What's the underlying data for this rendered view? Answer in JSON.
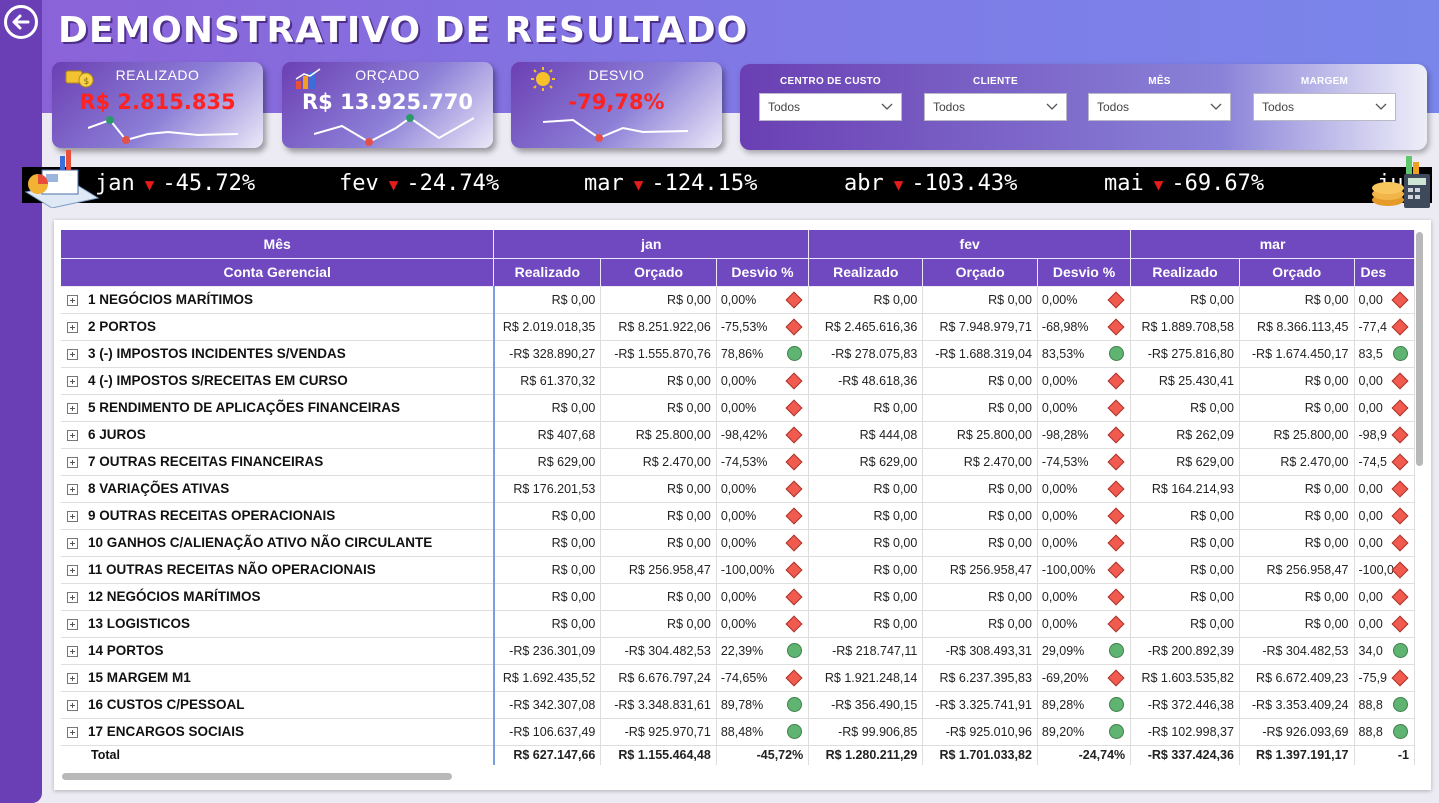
{
  "title": "DEMONSTRATIVO DE RESULTADO",
  "kpis": {
    "realizado": {
      "label": "REALIZADO",
      "value": "R$ 2.815.835",
      "color": "#ff2222"
    },
    "orcado": {
      "label": "ORÇADO",
      "value": "R$ 13.925.770",
      "color": "#ffffff"
    },
    "desvio": {
      "label": "DESVIO",
      "value": "-79,78%",
      "color": "#ff2222"
    }
  },
  "filters": [
    {
      "label": "CENTRO DE CUSTO",
      "value": "Todos"
    },
    {
      "label": "CLIENTE",
      "value": "Todos"
    },
    {
      "label": "MÊS",
      "value": "Todos"
    },
    {
      "label": "MARGEM",
      "value": "Todos"
    }
  ],
  "ticker": [
    {
      "month": "jan",
      "value": "-45.72%"
    },
    {
      "month": "fev",
      "value": "-24.74%"
    },
    {
      "month": "mar",
      "value": "-124.15%"
    },
    {
      "month": "abr",
      "value": "-103.43%"
    },
    {
      "month": "mai",
      "value": "-69.67%"
    },
    {
      "month": "ju",
      "value": ""
    }
  ],
  "matrix": {
    "row_header_1": "Mês",
    "row_header_2": "Conta Gerencial",
    "months": [
      "jan",
      "fev",
      "mar"
    ],
    "measures": [
      "Realizado",
      "Orçado",
      "Desvio %"
    ],
    "last_measure_partial": "Des",
    "rows": [
      {
        "name": "1 NEGÓCIOS MARÍTIMOS",
        "cells": [
          [
            "R$ 0,00",
            "R$ 0,00",
            "0,00%",
            "d"
          ],
          [
            "R$ 0,00",
            "R$ 0,00",
            "0,00%",
            "d"
          ],
          [
            "R$ 0,00",
            "R$ 0,00",
            "0,00",
            "d"
          ]
        ]
      },
      {
        "name": "2 PORTOS",
        "cells": [
          [
            "R$ 2.019.018,35",
            "R$ 8.251.922,06",
            "-75,53%",
            "d"
          ],
          [
            "R$ 2.465.616,36",
            "R$ 7.948.979,71",
            "-68,98%",
            "d"
          ],
          [
            "R$ 1.889.708,58",
            "R$ 8.366.113,45",
            "-77,4",
            "d"
          ]
        ]
      },
      {
        "name": "3 (-) IMPOSTOS INCIDENTES S/VENDAS",
        "cells": [
          [
            "-R$ 328.890,27",
            "-R$ 1.555.870,76",
            "78,86%",
            "c"
          ],
          [
            "-R$ 278.075,83",
            "-R$ 1.688.319,04",
            "83,53%",
            "c"
          ],
          [
            "-R$ 275.816,80",
            "-R$ 1.674.450,17",
            "83,5",
            "c"
          ]
        ]
      },
      {
        "name": "4 (-) IMPOSTOS S/RECEITAS EM CURSO",
        "cells": [
          [
            "R$ 61.370,32",
            "R$ 0,00",
            "0,00%",
            "d"
          ],
          [
            "-R$ 48.618,36",
            "R$ 0,00",
            "0,00%",
            "d"
          ],
          [
            "R$ 25.430,41",
            "R$ 0,00",
            "0,00",
            "d"
          ]
        ]
      },
      {
        "name": "5 RENDIMENTO DE APLICAÇÕES FINANCEIRAS",
        "cells": [
          [
            "R$ 0,00",
            "R$ 0,00",
            "0,00%",
            "d"
          ],
          [
            "R$ 0,00",
            "R$ 0,00",
            "0,00%",
            "d"
          ],
          [
            "R$ 0,00",
            "R$ 0,00",
            "0,00",
            "d"
          ]
        ]
      },
      {
        "name": "6 JUROS",
        "cells": [
          [
            "R$ 407,68",
            "R$ 25.800,00",
            "-98,42%",
            "d"
          ],
          [
            "R$ 444,08",
            "R$ 25.800,00",
            "-98,28%",
            "d"
          ],
          [
            "R$ 262,09",
            "R$ 25.800,00",
            "-98,9",
            "d"
          ]
        ]
      },
      {
        "name": "7 OUTRAS RECEITAS FINANCEIRAS",
        "cells": [
          [
            "R$ 629,00",
            "R$ 2.470,00",
            "-74,53%",
            "d"
          ],
          [
            "R$ 629,00",
            "R$ 2.470,00",
            "-74,53%",
            "d"
          ],
          [
            "R$ 629,00",
            "R$ 2.470,00",
            "-74,5",
            "d"
          ]
        ]
      },
      {
        "name": "8 VARIAÇÕES ATIVAS",
        "cells": [
          [
            "R$ 176.201,53",
            "R$ 0,00",
            "0,00%",
            "d"
          ],
          [
            "R$ 0,00",
            "R$ 0,00",
            "0,00%",
            "d"
          ],
          [
            "R$ 164.214,93",
            "R$ 0,00",
            "0,00",
            "d"
          ]
        ]
      },
      {
        "name": "9 OUTRAS RECEITAS OPERACIONAIS",
        "cells": [
          [
            "R$ 0,00",
            "R$ 0,00",
            "0,00%",
            "d"
          ],
          [
            "R$ 0,00",
            "R$ 0,00",
            "0,00%",
            "d"
          ],
          [
            "R$ 0,00",
            "R$ 0,00",
            "0,00",
            "d"
          ]
        ]
      },
      {
        "name": "10 GANHOS C/ALIENAÇÃO ATIVO NÃO CIRCULANTE",
        "cells": [
          [
            "R$ 0,00",
            "R$ 0,00",
            "0,00%",
            "d"
          ],
          [
            "R$ 0,00",
            "R$ 0,00",
            "0,00%",
            "d"
          ],
          [
            "R$ 0,00",
            "R$ 0,00",
            "0,00",
            "d"
          ]
        ]
      },
      {
        "name": "11 OUTRAS RECEITAS NÃO OPERACIONAIS",
        "cells": [
          [
            "R$ 0,00",
            "R$ 256.958,47",
            "-100,00%",
            "d"
          ],
          [
            "R$ 0,00",
            "R$ 256.958,47",
            "-100,00%",
            "d"
          ],
          [
            "R$ 0,00",
            "R$ 256.958,47",
            "-100,0",
            "d"
          ]
        ]
      },
      {
        "name": "12 NEGÓCIOS MARÍTIMOS",
        "cells": [
          [
            "R$ 0,00",
            "R$ 0,00",
            "0,00%",
            "d"
          ],
          [
            "R$ 0,00",
            "R$ 0,00",
            "0,00%",
            "d"
          ],
          [
            "R$ 0,00",
            "R$ 0,00",
            "0,00",
            "d"
          ]
        ]
      },
      {
        "name": "13 LOGISTICOS",
        "cells": [
          [
            "R$ 0,00",
            "R$ 0,00",
            "0,00%",
            "d"
          ],
          [
            "R$ 0,00",
            "R$ 0,00",
            "0,00%",
            "d"
          ],
          [
            "R$ 0,00",
            "R$ 0,00",
            "0,00",
            "d"
          ]
        ]
      },
      {
        "name": "14 PORTOS",
        "cells": [
          [
            "-R$ 236.301,09",
            "-R$ 304.482,53",
            "22,39%",
            "c"
          ],
          [
            "-R$ 218.747,11",
            "-R$ 308.493,31",
            "29,09%",
            "c"
          ],
          [
            "-R$ 200.892,39",
            "-R$ 304.482,53",
            "34,0",
            "c"
          ]
        ]
      },
      {
        "name": "15 MARGEM M1",
        "cells": [
          [
            "R$ 1.692.435,52",
            "R$ 6.676.797,24",
            "-74,65%",
            "d"
          ],
          [
            "R$ 1.921.248,14",
            "R$ 6.237.395,83",
            "-69,20%",
            "d"
          ],
          [
            "R$ 1.603.535,82",
            "R$ 6.672.409,23",
            "-75,9",
            "d"
          ]
        ]
      },
      {
        "name": "16 CUSTOS C/PESSOAL",
        "cells": [
          [
            "-R$ 342.307,08",
            "-R$ 3.348.831,61",
            "89,78%",
            "c"
          ],
          [
            "-R$ 356.490,15",
            "-R$ 3.325.741,91",
            "89,28%",
            "c"
          ],
          [
            "-R$ 372.446,38",
            "-R$ 3.353.409,24",
            "88,8",
            "c"
          ]
        ]
      },
      {
        "name": "17 ENCARGOS SOCIAIS",
        "cells": [
          [
            "-R$ 106.637,49",
            "-R$ 925.970,71",
            "88,48%",
            "c"
          ],
          [
            "-R$ 99.906,85",
            "-R$ 925.010,96",
            "89,20%",
            "c"
          ],
          [
            "-R$ 102.998,37",
            "-R$ 926.093,69",
            "88,8",
            "c"
          ]
        ]
      }
    ],
    "total": {
      "name": "Total",
      "cells": [
        [
          "R$ 627.147,66",
          "R$ 1.155.464,48",
          "-45,72%"
        ],
        [
          "R$ 1.280.211,29",
          "R$ 1.701.033,82",
          "-24,74%"
        ],
        [
          "-R$ 337.424,36",
          "R$ 1.397.191,17",
          "-1"
        ]
      ]
    }
  }
}
